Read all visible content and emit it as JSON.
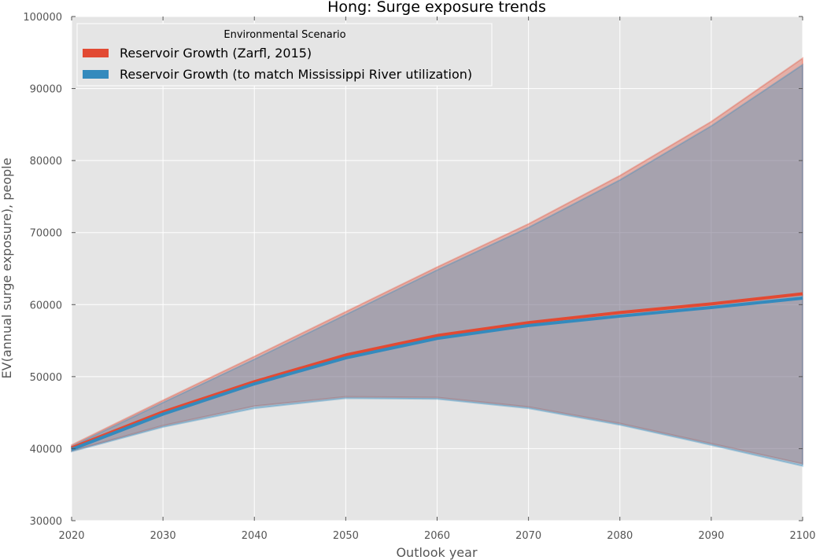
{
  "chart_data": {
    "type": "area",
    "title": "Hong: Surge exposure trends",
    "xlabel": "Outlook year",
    "ylabel": "EV(annual surge exposure), people",
    "xlim": [
      2020,
      2100
    ],
    "ylim": [
      30000,
      100000
    ],
    "x": [
      2020,
      2030,
      2040,
      2050,
      2060,
      2070,
      2080,
      2090,
      2100
    ],
    "x_ticks": [
      "2020",
      "2030",
      "2040",
      "2050",
      "2060",
      "2070",
      "2080",
      "2090",
      "2100"
    ],
    "y_ticks": [
      "30000",
      "40000",
      "50000",
      "60000",
      "70000",
      "80000",
      "90000",
      "100000"
    ],
    "grid": true,
    "legend": {
      "title": "Environmental Scenario",
      "placement": "top-left"
    },
    "series": [
      {
        "name": "Reservoir Growth (Zarfl, 2015)",
        "color": "#e24a33",
        "values": [
          40100,
          45100,
          49300,
          53000,
          55700,
          57500,
          58900,
          60100,
          61500
        ],
        "upper": [
          40500,
          46700,
          52800,
          59000,
          65200,
          71200,
          77900,
          85400,
          94200
        ],
        "lower": [
          39700,
          43200,
          45900,
          47200,
          47100,
          45800,
          43500,
          40700,
          37900
        ]
      },
      {
        "name": "Reservoir Growth (to match Mississippi River utilization)",
        "color": "#348abd",
        "values": [
          39900,
          44800,
          49000,
          52600,
          55300,
          57100,
          58400,
          59600,
          60900
        ],
        "upper": [
          40300,
          46400,
          52400,
          58600,
          64800,
          70700,
          77300,
          84800,
          93300
        ],
        "lower": [
          39600,
          43000,
          45600,
          47000,
          46900,
          45600,
          43300,
          40500,
          37600
        ]
      }
    ]
  }
}
